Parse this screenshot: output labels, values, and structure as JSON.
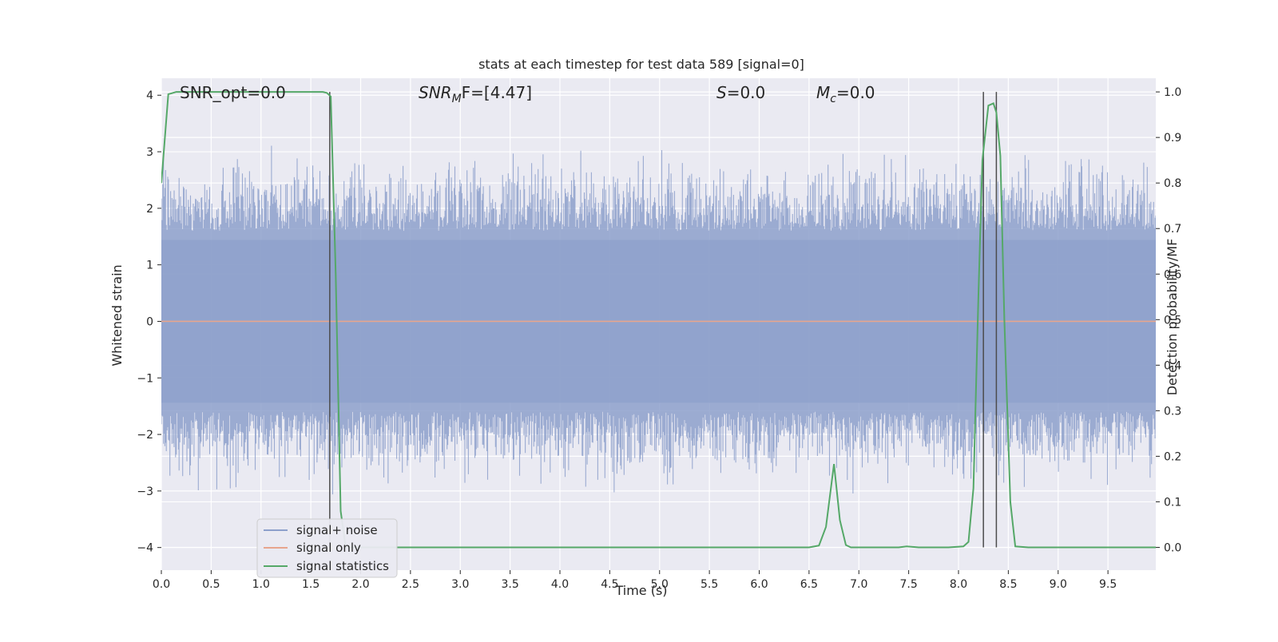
{
  "chart_data": {
    "type": "line",
    "title": "stats at each timestep for test data 589 [signal=0]",
    "xlabel": "Time (s)",
    "ylabel": "Whitened strain",
    "y2label": "Detection probability/MF",
    "xlim": [
      0,
      9.98
    ],
    "ylim": [
      -4.4,
      4.3
    ],
    "y2lim": [
      -0.05,
      1.03
    ],
    "grid": true,
    "x_ticks": [
      "0.0",
      "0.5",
      "1.0",
      "1.5",
      "2.0",
      "2.5",
      "3.0",
      "3.5",
      "4.0",
      "4.5",
      "5.0",
      "5.5",
      "6.0",
      "6.5",
      "7.0",
      "7.5",
      "8.0",
      "8.5",
      "9.0",
      "9.5"
    ],
    "y_ticks": [
      "4",
      "3",
      "2",
      "1",
      "0",
      "−1",
      "−2",
      "−3",
      "−4"
    ],
    "y2_ticks": [
      "1.0",
      "0.9",
      "0.8",
      "0.7",
      "0.6",
      "0.5",
      "0.4",
      "0.3",
      "0.2",
      "0.1",
      "0.0"
    ],
    "annotations": {
      "snr_opt": "SNR_opt=0.0",
      "snr_mf_main": "SNR",
      "snr_mf_sub": "M",
      "snr_mf_rest": "F=[4.47]",
      "s_main": "S",
      "s_rest": "=0.0",
      "mc_main": "M",
      "mc_sub": "c",
      "mc_rest": "=0.0"
    },
    "legend": {
      "position": "lower-left",
      "entries": [
        "signal+ noise",
        "signal only",
        "signal statistics"
      ]
    },
    "colors": {
      "noise": "#8da0cb",
      "signal_only": "#e7a58d",
      "statistics": "#55a868",
      "vlines": "#4c4c4c",
      "background": "#eaeaf2"
    },
    "series": [
      {
        "name": "signal statistics",
        "axis": "right",
        "x": [
          0,
          0.07,
          0.15,
          0.3,
          0.6,
          1.0,
          1.4,
          1.62,
          1.66,
          1.7,
          1.75,
          1.8,
          1.85,
          1.95,
          2.5,
          4.0,
          6.0,
          6.5,
          6.6,
          6.67,
          6.75,
          6.81,
          6.87,
          6.92,
          7.0,
          7.4,
          7.48,
          7.6,
          7.9,
          8.05,
          8.1,
          8.15,
          8.2,
          8.24,
          8.3,
          8.35,
          8.38,
          8.42,
          8.46,
          8.52,
          8.57,
          8.7,
          9.98
        ],
        "y": [
          0.8,
          0.995,
          1.0,
          1.0,
          1.0,
          1.0,
          1.0,
          1.0,
          0.998,
          0.99,
          0.6,
          0.08,
          0.0,
          0.0,
          0.0,
          0.0,
          0.0,
          0.0,
          0.004,
          0.045,
          0.183,
          0.06,
          0.005,
          0.0,
          0.0,
          0.0,
          0.002,
          0.0,
          0.0,
          0.002,
          0.012,
          0.13,
          0.55,
          0.85,
          0.97,
          0.975,
          0.955,
          0.86,
          0.5,
          0.1,
          0.002,
          0.0,
          0.0
        ]
      },
      {
        "name": "signal only",
        "axis": "left",
        "x": [
          0,
          9.98
        ],
        "y": [
          0,
          0
        ]
      },
      {
        "name": "signal+ noise",
        "axis": "left",
        "amplitude_core": 1.6,
        "amplitude_max": 3.9,
        "x_range": [
          0,
          9.98
        ]
      }
    ],
    "vertical_lines": [
      1.69,
      8.25,
      8.38
    ]
  }
}
